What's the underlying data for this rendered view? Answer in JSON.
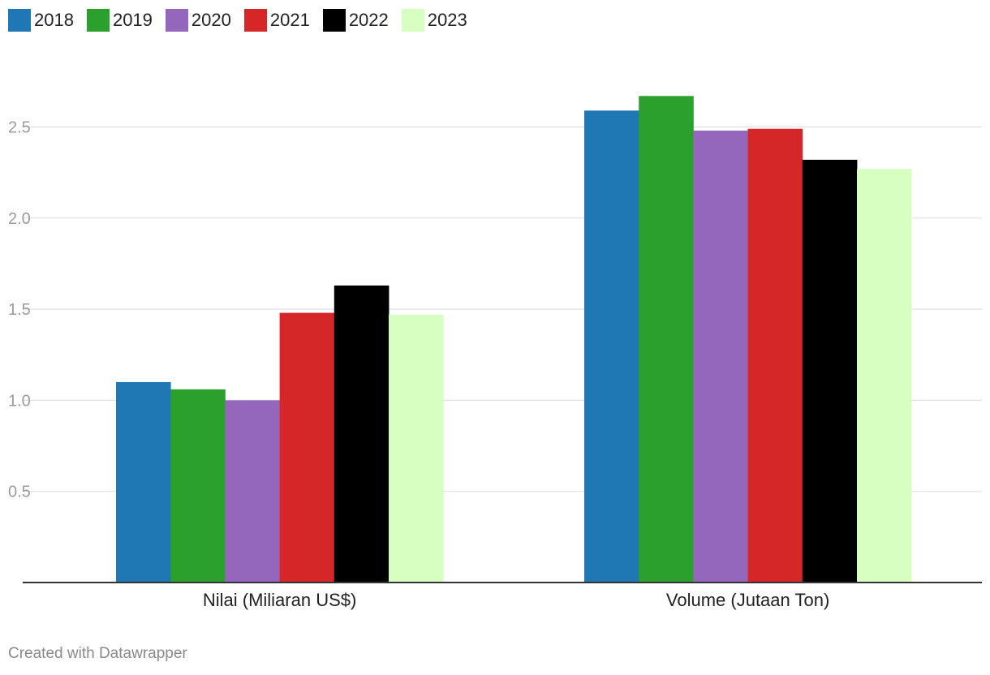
{
  "chart_data": {
    "type": "bar",
    "categories": [
      "Nilai (Miliaran US$)",
      "Volume (Jutaan Ton)"
    ],
    "series": [
      {
        "name": "2018",
        "color": "#1f77b4",
        "values": [
          1.1,
          2.59
        ]
      },
      {
        "name": "2019",
        "color": "#2ca02c",
        "values": [
          1.06,
          2.67
        ]
      },
      {
        "name": "2020",
        "color": "#9467bd",
        "values": [
          1.0,
          2.48
        ]
      },
      {
        "name": "2021",
        "color": "#d62728",
        "values": [
          1.48,
          2.49
        ]
      },
      {
        "name": "2022",
        "color": "#000000",
        "values": [
          1.63,
          2.32
        ]
      },
      {
        "name": "2023",
        "color": "#d8ffc2",
        "values": [
          1.47,
          2.27
        ]
      }
    ],
    "yticks": [
      "0.5",
      "1.0",
      "1.5",
      "2.0",
      "2.5"
    ],
    "ylim": [
      0,
      2.5
    ],
    "grid": true,
    "legend": "top-left"
  },
  "footer": "Created with Datawrapper"
}
